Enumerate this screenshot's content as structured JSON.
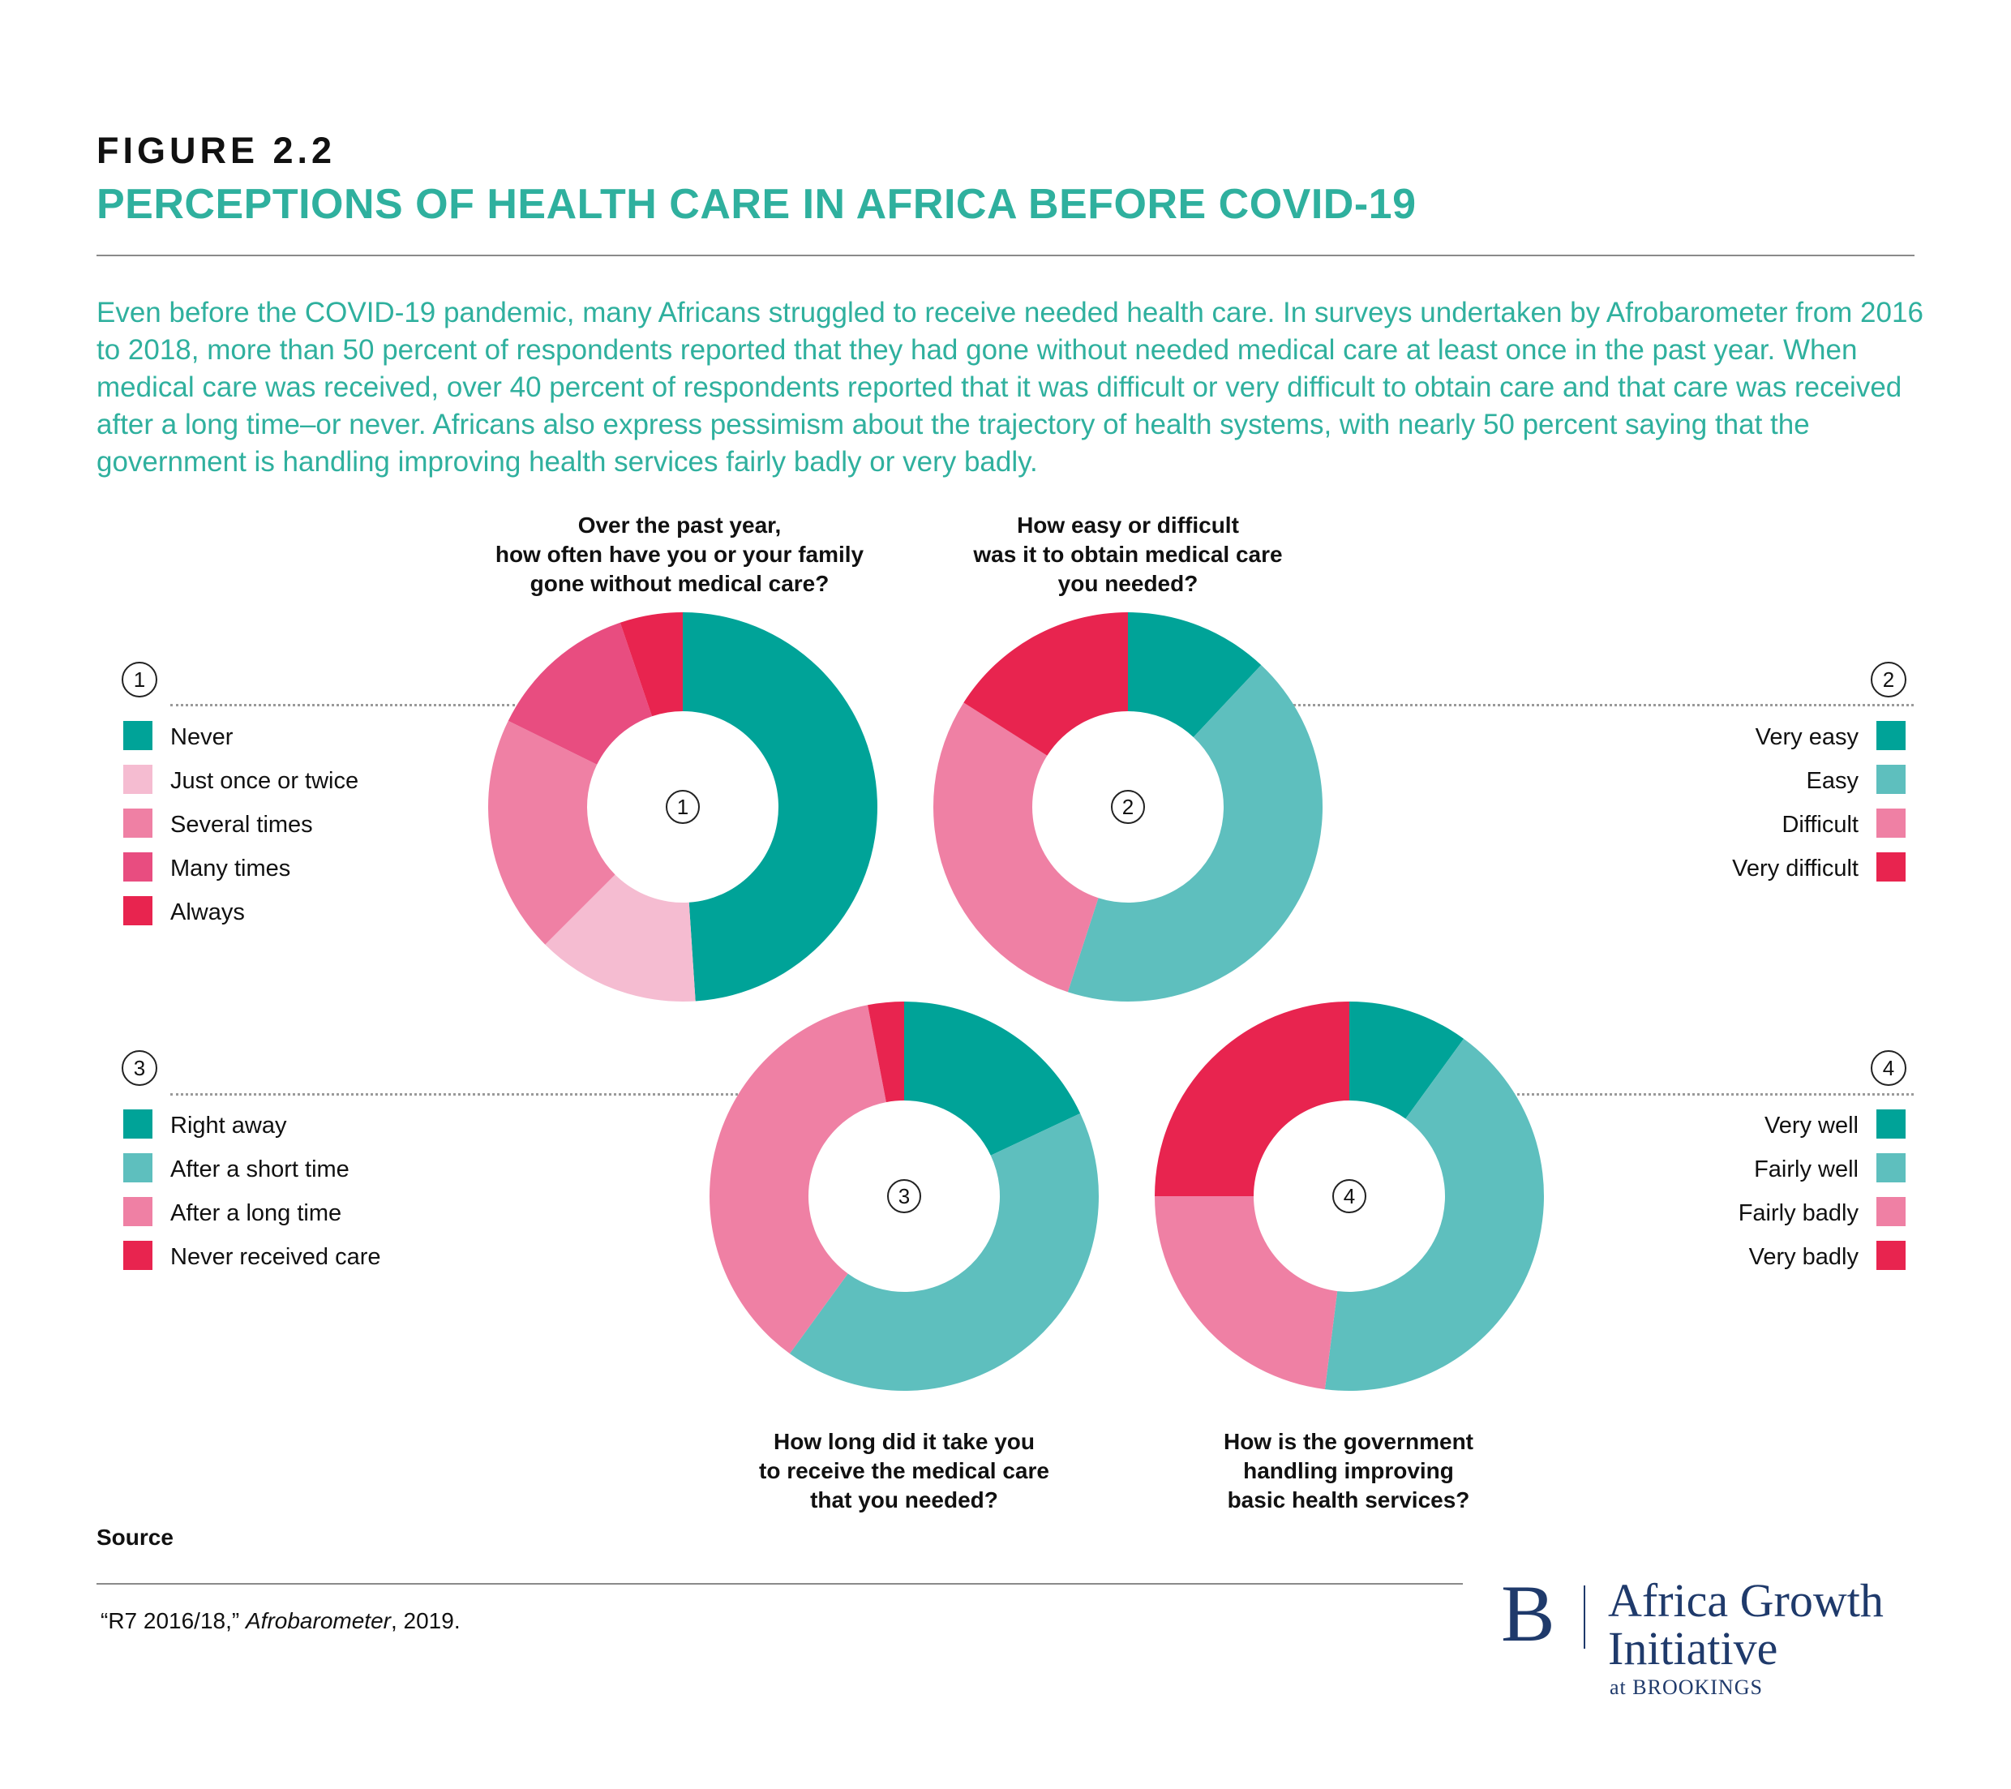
{
  "figure_label": "FIGURE 2.2",
  "title": "PERCEPTIONS OF HEALTH CARE IN AFRICA BEFORE COVID-19",
  "intro": "Even before the COVID-19 pandemic, many Africans struggled to receive needed health care. In surveys undertaken by Afrobarometer from 2016 to 2018, more than 50 percent of respondents reported that they had gone without needed medical care at least once in the past year. When medical care was received, over 40 percent of respondents reported that it was difficult or very difficult to obtain care and that care was received after a long time–or never. Africans also express pessimism about the trajectory of health systems, with nearly 50 percent saying that the government is handling improving health services fairly badly or very badly.",
  "source_label": "Source",
  "source": {
    "quote": "“R7 2016/18,” ",
    "publication": "Afrobarometer",
    "year": ", 2019."
  },
  "logo": {
    "mark": "B",
    "line1": "Africa Growth",
    "line2": "Initiative",
    "line3": "at BROOKINGS"
  },
  "colors": {
    "accent": "#2fb09e",
    "teal_dark": "#00a398",
    "teal_light": "#5ebfbe",
    "pink_light": "#f5bcd1",
    "pink_mid": "#ef80a4",
    "pink_dark": "#e84d80",
    "red": "#e8244f",
    "logo_navy": "#1f3a6b"
  },
  "chart_data": [
    {
      "type": "pie",
      "number": "1",
      "question": [
        "Over the past year,",
        "how often have you or your family",
        "gone without medical care?"
      ],
      "categories": [
        "Never",
        "Just once or twice",
        "Several times",
        "Many times",
        "Always"
      ],
      "values": [
        47,
        13,
        19,
        12,
        5
      ],
      "colors": [
        "#00a398",
        "#f5bcd1",
        "#ef80a4",
        "#e84d80",
        "#e8244f"
      ],
      "legend_position": "left"
    },
    {
      "type": "pie",
      "number": "2",
      "question": [
        "How easy or difficult",
        "was it to obtain medical care",
        "you needed?"
      ],
      "categories": [
        "Very easy",
        "Easy",
        "Difficult",
        "Very difficult"
      ],
      "values": [
        12,
        43,
        29,
        16
      ],
      "colors": [
        "#00a398",
        "#5ebfbe",
        "#ef80a4",
        "#e8244f"
      ],
      "legend_position": "right"
    },
    {
      "type": "pie",
      "number": "3",
      "question": [
        "How long did it take you",
        "to receive the medical care",
        "that you needed?"
      ],
      "categories": [
        "Right away",
        "After a short time",
        "After a long time",
        "Never received care"
      ],
      "values": [
        18,
        42,
        37,
        3
      ],
      "colors": [
        "#00a398",
        "#5ebfbe",
        "#ef80a4",
        "#e8244f"
      ],
      "legend_position": "left"
    },
    {
      "type": "pie",
      "number": "4",
      "question": [
        "How is the government",
        "handling improving",
        "basic health services?"
      ],
      "categories": [
        "Very well",
        "Fairly well",
        "Fairly badly",
        "Very badly"
      ],
      "values": [
        10,
        42,
        23,
        25
      ],
      "colors": [
        "#00a398",
        "#5ebfbe",
        "#ef80a4",
        "#e8244f"
      ],
      "legend_position": "right"
    }
  ]
}
